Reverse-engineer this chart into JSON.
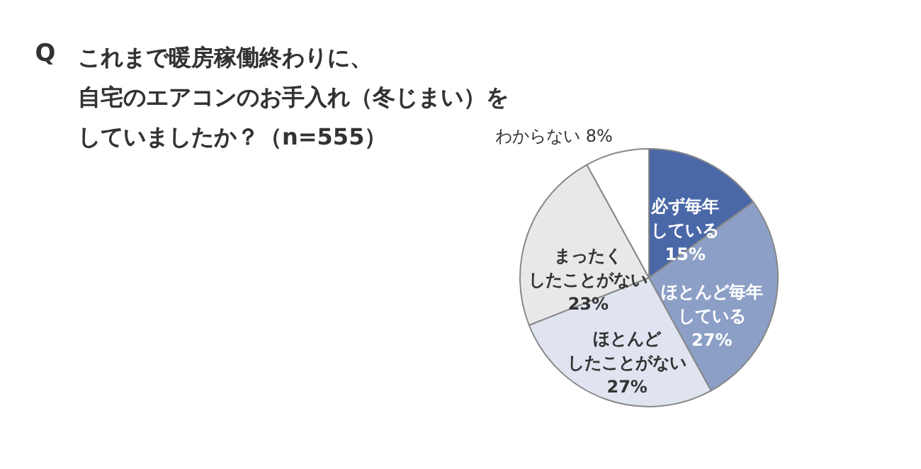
{
  "chart_data": {
    "type": "pie",
    "title": "これまで暖房稼働終わりに、自宅のエアコンのお手入れ（冬じまい）をしていましたか？（n=555）",
    "annotations": [
      "Q"
    ],
    "categories": [
      "必ず毎年している",
      "ほとんど毎年している",
      "ほとんどしたことがない",
      "まったくしたことがない",
      "わからない"
    ],
    "values": [
      15,
      27,
      27,
      23,
      8
    ],
    "value_labels": [
      "15%",
      "27%",
      "27%",
      "23%",
      "8%"
    ],
    "colors": [
      "#4a68a8",
      "#8c9fc6",
      "#dfe4f0",
      "#e8e8e8",
      "#ffffff"
    ],
    "legend": false
  }
}
